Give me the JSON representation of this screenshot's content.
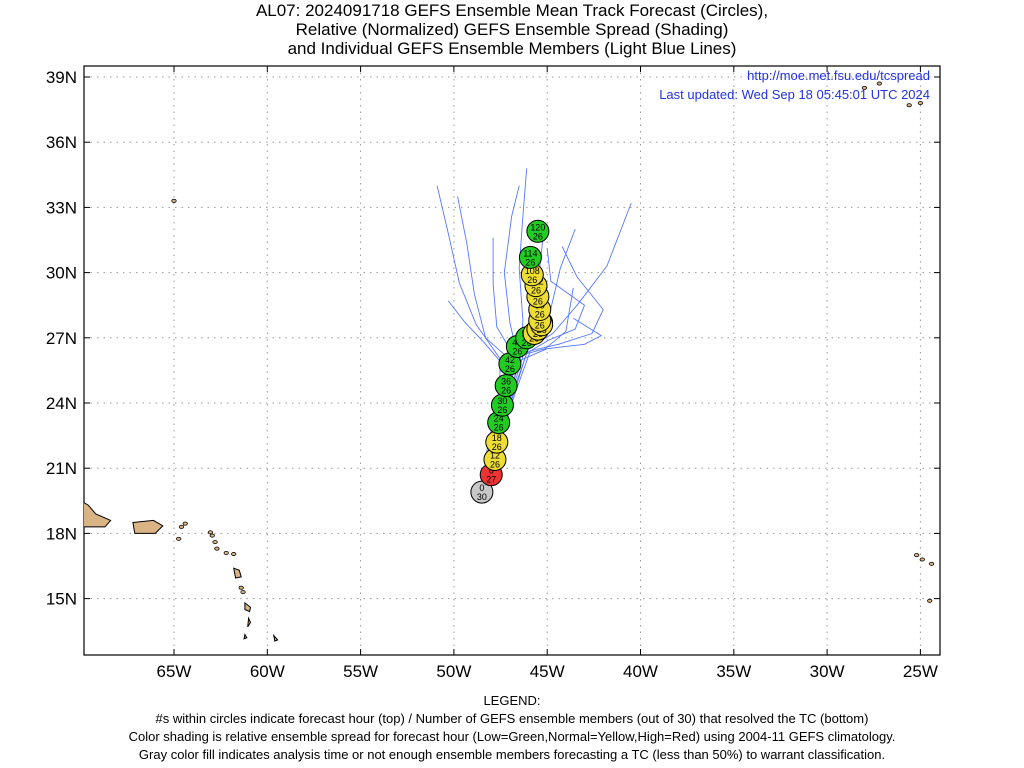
{
  "title": {
    "line1": "AL07: 2024091718 GEFS Ensemble Mean Track Forecast (Circles),",
    "line2": "Relative (Normalized) GEFS Ensemble Spread (Shading)",
    "line3": "and Individual GEFS Ensemble Members (Light Blue Lines)"
  },
  "url": "http://moe.met.fsu.edu/tcspread",
  "updated": "Last updated: Wed Sep 18 05:45:01 UTC 2024",
  "legend": {
    "heading": "LEGEND:",
    "line1": "#s within circles indicate forecast hour (top) / Number of GEFS ensemble members (out of 30) that resolved the TC (bottom)",
    "line2": "Color shading is relative ensemble spread for forecast hour (Low=Green,Normal=Yellow,High=Red) using 2004-11 GEFS climatology.",
    "line3": "Gray color fill indicates analysis time or not enough ensemble members forecasting a TC (less than 50%) to warrant classification."
  },
  "colors": {
    "low": "#22cc22",
    "normal": "#eedd33",
    "high": "#ee3333",
    "gray": "#c8c8c8",
    "member": "#5577ff",
    "land": "#d9b383",
    "grid": "#999999"
  },
  "chart_data": {
    "type": "scatter",
    "axes": {
      "lon_range": [
        -70,
        -24
      ],
      "lat_range": [
        12.5,
        39.5
      ],
      "x_ticks": [
        -65,
        -60,
        -55,
        -50,
        -45,
        -40,
        -35,
        -30,
        -25
      ],
      "x_tick_labels": [
        "65W",
        "60W",
        "55W",
        "50W",
        "45W",
        "40W",
        "35W",
        "30W",
        "25W"
      ],
      "y_ticks": [
        15,
        18,
        21,
        24,
        27,
        30,
        33,
        36,
        39
      ],
      "y_tick_labels": [
        "15N",
        "18N",
        "21N",
        "24N",
        "27N",
        "30N",
        "33N",
        "36N",
        "39N"
      ],
      "grid": true
    },
    "ensemble_mean": [
      {
        "hour": 0,
        "members": 30,
        "lon": -48.5,
        "lat": 19.9,
        "spread": "gray"
      },
      {
        "hour": 6,
        "members": 27,
        "lon": -48.0,
        "lat": 20.7,
        "spread": "high"
      },
      {
        "hour": 12,
        "members": 26,
        "lon": -47.8,
        "lat": 21.4,
        "spread": "normal"
      },
      {
        "hour": 18,
        "members": 26,
        "lon": -47.7,
        "lat": 22.2,
        "spread": "normal"
      },
      {
        "hour": 24,
        "members": 26,
        "lon": -47.6,
        "lat": 23.1,
        "spread": "low"
      },
      {
        "hour": 30,
        "members": 26,
        "lon": -47.4,
        "lat": 23.9,
        "spread": "low"
      },
      {
        "hour": 36,
        "members": 26,
        "lon": -47.2,
        "lat": 24.8,
        "spread": "low"
      },
      {
        "hour": 42,
        "members": 26,
        "lon": -47.0,
        "lat": 25.8,
        "spread": "low"
      },
      {
        "hour": 48,
        "members": 26,
        "lon": -46.6,
        "lat": 26.6,
        "spread": "low"
      },
      {
        "hour": 54,
        "members": 26,
        "lon": -46.1,
        "lat": 27.0,
        "spread": "low"
      },
      {
        "hour": 60,
        "members": 26,
        "lon": -45.7,
        "lat": 27.2,
        "spread": "normal"
      },
      {
        "hour": 66,
        "members": 26,
        "lon": -45.5,
        "lat": 27.4,
        "spread": "normal"
      },
      {
        "hour": 72,
        "members": 26,
        "lon": -45.3,
        "lat": 27.7,
        "spread": "normal"
      },
      {
        "hour": 78,
        "members": 26,
        "lon": -45.3,
        "lat": 27.6,
        "spread": "normal"
      },
      {
        "hour": 84,
        "members": 26,
        "lon": -45.4,
        "lat": 27.8,
        "spread": "normal"
      },
      {
        "hour": 90,
        "members": 26,
        "lon": -45.4,
        "lat": 28.3,
        "spread": "normal"
      },
      {
        "hour": 96,
        "members": 26,
        "lon": -45.5,
        "lat": 28.9,
        "spread": "normal"
      },
      {
        "hour": 102,
        "members": 26,
        "lon": -45.6,
        "lat": 29.4,
        "spread": "normal"
      },
      {
        "hour": 108,
        "members": 26,
        "lon": -45.8,
        "lat": 29.9,
        "spread": "normal"
      },
      {
        "hour": 114,
        "members": 26,
        "lon": -45.9,
        "lat": 30.7,
        "spread": "low"
      },
      {
        "hour": 120,
        "members": 26,
        "lon": -45.5,
        "lat": 31.9,
        "spread": "low"
      }
    ],
    "members": [
      [
        [
          -48.5,
          19.9
        ],
        [
          -48.2,
          22.0
        ],
        [
          -47.6,
          24.2
        ],
        [
          -47.5,
          26.0
        ],
        [
          -48.8,
          27.6
        ],
        [
          -49.7,
          29.5
        ],
        [
          -50.3,
          31.8
        ],
        [
          -50.9,
          34.0
        ]
      ],
      [
        [
          -48.5,
          19.9
        ],
        [
          -48.0,
          22.0
        ],
        [
          -47.3,
          24.3
        ],
        [
          -47.0,
          26.0
        ],
        [
          -48.3,
          27.0
        ],
        [
          -48.9,
          29.0
        ],
        [
          -49.3,
          31.3
        ],
        [
          -49.8,
          33.5
        ]
      ],
      [
        [
          -48.5,
          19.9
        ],
        [
          -47.9,
          22.0
        ],
        [
          -47.2,
          24.3
        ],
        [
          -46.8,
          26.2
        ],
        [
          -47.7,
          27.5
        ],
        [
          -47.9,
          29.5
        ],
        [
          -47.9,
          31.6
        ]
      ],
      [
        [
          -48.5,
          19.9
        ],
        [
          -47.8,
          22.1
        ],
        [
          -47.1,
          24.4
        ],
        [
          -46.6,
          26.2
        ],
        [
          -47.0,
          27.7
        ],
        [
          -47.3,
          30.0
        ],
        [
          -46.9,
          32.6
        ],
        [
          -46.5,
          34.0
        ]
      ],
      [
        [
          -48.5,
          19.9
        ],
        [
          -47.7,
          22.1
        ],
        [
          -47.0,
          24.4
        ],
        [
          -46.4,
          26.3
        ],
        [
          -46.3,
          27.8
        ],
        [
          -46.5,
          30.2
        ],
        [
          -46.3,
          32.6
        ],
        [
          -46.1,
          34.8
        ]
      ],
      [
        [
          -48.5,
          19.9
        ],
        [
          -47.6,
          22.2
        ],
        [
          -46.9,
          24.5
        ],
        [
          -46.2,
          26.4
        ],
        [
          -45.6,
          27.5
        ],
        [
          -45.5,
          29.5
        ],
        [
          -45.2,
          31.8
        ]
      ],
      [
        [
          -48.5,
          19.9
        ],
        [
          -47.5,
          22.2
        ],
        [
          -46.8,
          24.6
        ],
        [
          -46.0,
          26.5
        ],
        [
          -44.7,
          27.2
        ],
        [
          -43.4,
          28.5
        ],
        [
          -41.8,
          30.3
        ],
        [
          -40.5,
          33.2
        ]
      ],
      [
        [
          -48.5,
          19.9
        ],
        [
          -47.6,
          22.1
        ],
        [
          -46.7,
          24.5
        ],
        [
          -45.9,
          26.4
        ],
        [
          -44.4,
          26.7
        ],
        [
          -42.6,
          27.2
        ],
        [
          -42.0,
          28.3
        ],
        [
          -43.4,
          29.8
        ],
        [
          -44.2,
          31.2
        ]
      ],
      [
        [
          -48.5,
          19.9
        ],
        [
          -47.7,
          22.0
        ],
        [
          -46.8,
          24.4
        ],
        [
          -46.1,
          26.3
        ],
        [
          -44.9,
          26.9
        ],
        [
          -43.5,
          27.4
        ],
        [
          -43.0,
          28.5
        ],
        [
          -44.8,
          29.6
        ],
        [
          -45.0,
          31.1
        ]
      ],
      [
        [
          -48.5,
          19.9
        ],
        [
          -47.8,
          21.9
        ],
        [
          -47.2,
          24.0
        ],
        [
          -46.9,
          25.8
        ],
        [
          -45.0,
          26.5
        ],
        [
          -43.0,
          26.7
        ],
        [
          -42.1,
          27.1
        ],
        [
          -43.6,
          27.9
        ]
      ],
      [
        [
          -48.5,
          19.9
        ],
        [
          -48.0,
          21.8
        ],
        [
          -47.4,
          24.0
        ],
        [
          -47.2,
          25.6
        ],
        [
          -48.4,
          26.8
        ],
        [
          -49.4,
          27.7
        ],
        [
          -50.3,
          28.7
        ]
      ],
      [
        [
          -48.5,
          19.9
        ],
        [
          -47.9,
          22.0
        ],
        [
          -47.3,
          24.2
        ],
        [
          -46.8,
          26.0
        ],
        [
          -45.6,
          26.7
        ],
        [
          -44.9,
          28.0
        ],
        [
          -44.3,
          30.2
        ],
        [
          -43.5,
          32.0
        ]
      ],
      [
        [
          -48.5,
          19.9
        ],
        [
          -47.7,
          22.1
        ],
        [
          -47.0,
          24.4
        ],
        [
          -46.4,
          26.2
        ],
        [
          -45.1,
          26.5
        ],
        [
          -44.0,
          27.3
        ],
        [
          -43.6,
          29.3
        ]
      ]
    ]
  },
  "map": {
    "lands": [
      {
        "name": "puerto-rico",
        "poly": [
          [
            -67.2,
            18.5
          ],
          [
            -66.1,
            18.6
          ],
          [
            -65.6,
            18.35
          ],
          [
            -66.0,
            18.0
          ],
          [
            -67.1,
            18.0
          ]
        ]
      },
      {
        "name": "hispaniola-east",
        "poly": [
          [
            -70,
            19.5
          ],
          [
            -69.6,
            19.3
          ],
          [
            -69.2,
            18.9
          ],
          [
            -68.4,
            18.6
          ],
          [
            -68.7,
            18.3
          ],
          [
            -70,
            18.3
          ]
        ]
      },
      {
        "name": "guadeloupe",
        "poly": [
          [
            -61.8,
            16.4
          ],
          [
            -61.5,
            16.3
          ],
          [
            -61.4,
            16.0
          ],
          [
            -61.7,
            15.95
          ]
        ]
      },
      {
        "name": "martinique",
        "poly": [
          [
            -61.2,
            14.8
          ],
          [
            -60.9,
            14.6
          ],
          [
            -60.95,
            14.4
          ],
          [
            -61.2,
            14.5
          ]
        ]
      },
      {
        "name": "st-lucia",
        "poly": [
          [
            -61.0,
            14.1
          ],
          [
            -60.9,
            13.9
          ],
          [
            -61.05,
            13.7
          ]
        ]
      },
      {
        "name": "st-vincent",
        "poly": [
          [
            -61.2,
            13.35
          ],
          [
            -61.1,
            13.2
          ],
          [
            -61.25,
            13.15
          ]
        ]
      },
      {
        "name": "barbados",
        "poly": [
          [
            -59.65,
            13.3
          ],
          [
            -59.45,
            13.1
          ],
          [
            -59.6,
            13.05
          ]
        ]
      }
    ],
    "islets": [
      [
        -64.75,
        17.75
      ],
      [
        -64.6,
        18.3
      ],
      [
        -64.4,
        18.45
      ],
      [
        -63.05,
        18.05
      ],
      [
        -62.95,
        17.9
      ],
      [
        -62.8,
        17.6
      ],
      [
        -62.7,
        17.3
      ],
      [
        -62.2,
        17.1
      ],
      [
        -61.8,
        17.05
      ],
      [
        -61.4,
        15.5
      ],
      [
        -61.3,
        15.3
      ],
      [
        -65.0,
        33.3
      ],
      [
        -25.2,
        17.0
      ],
      [
        -24.9,
        16.8
      ],
      [
        -24.4,
        16.6
      ],
      [
        -24.5,
        14.9
      ],
      [
        -25.0,
        37.8
      ],
      [
        -25.6,
        37.7
      ],
      [
        -28.0,
        38.5
      ],
      [
        -27.2,
        38.7
      ]
    ]
  }
}
